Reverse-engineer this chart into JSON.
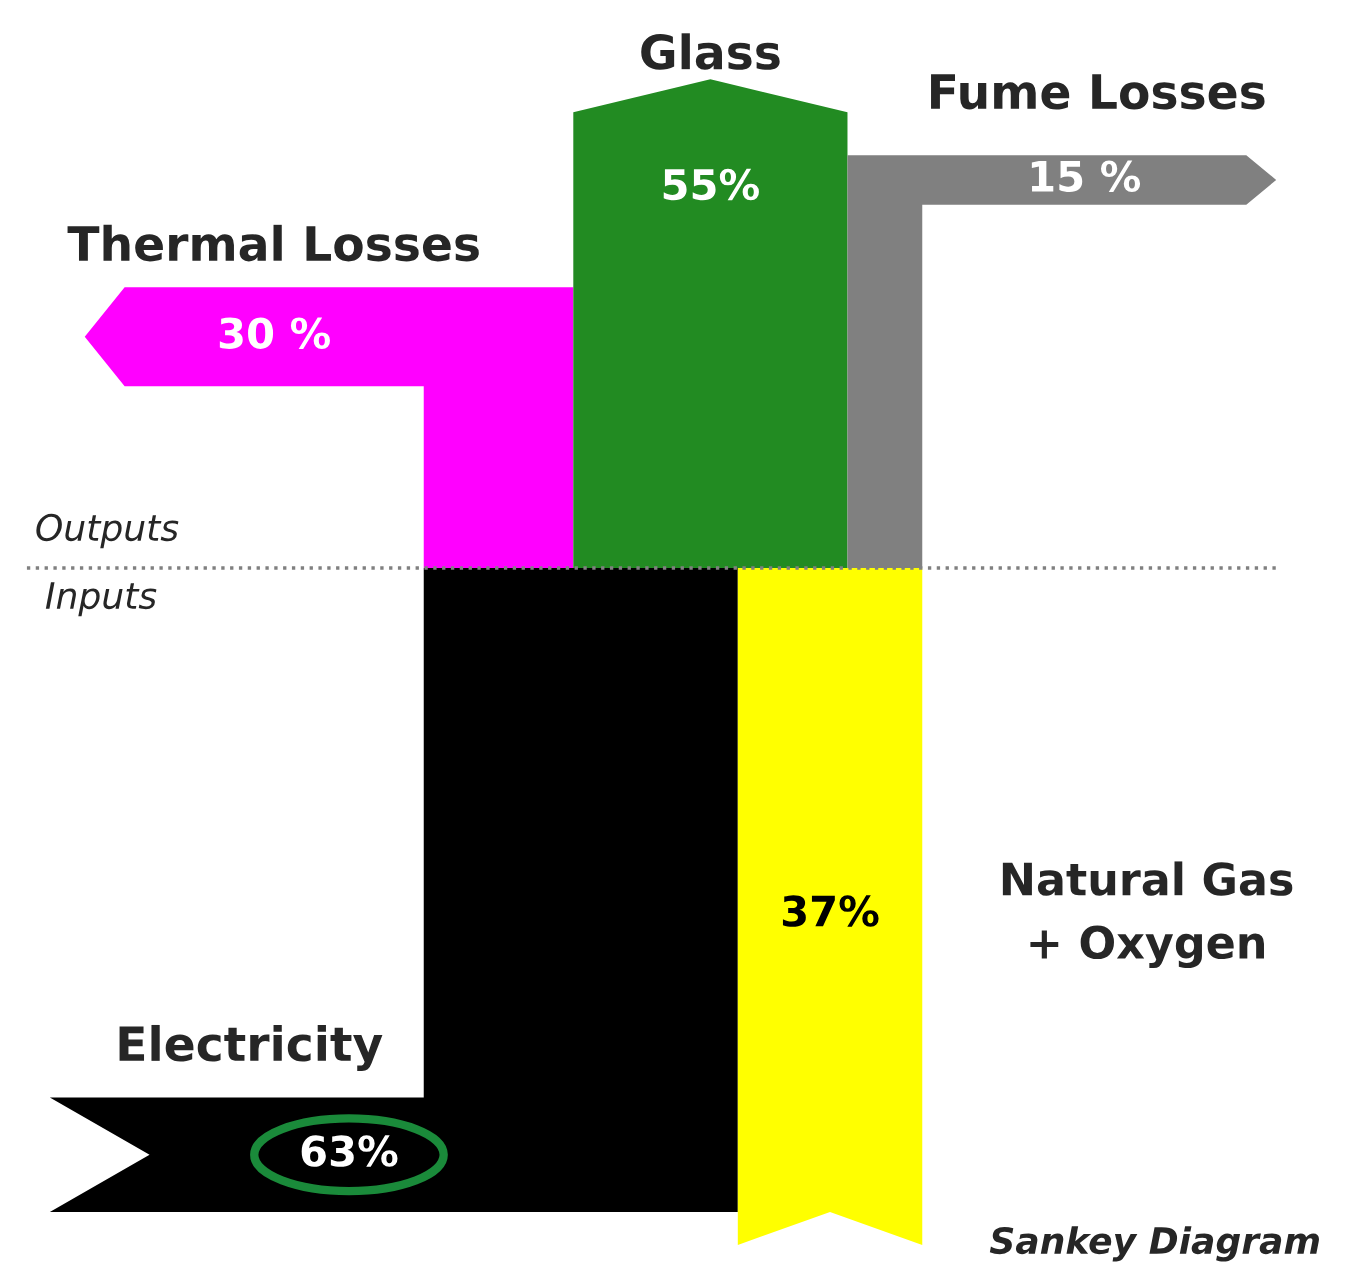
{
  "chart_data": {
    "type": "other",
    "categories": [
      "Thermal Losses",
      "Glass",
      "Fume Losses",
      "Electricity",
      "Natural Gas\n+ Oxygen"
    ],
    "values": [
      30,
      55,
      15,
      63,
      37
    ],
    "colors": [
      "#ff00ff",
      "#228b22",
      "#808080",
      "#000000",
      "#ffff00"
    ],
    "value_labels": [
      "30 %",
      "55%",
      "15 %",
      "63%",
      "37%"
    ],
    "annotations": [
      "Outputs",
      "Inputs",
      "Sankey Diagram"
    ]
  }
}
